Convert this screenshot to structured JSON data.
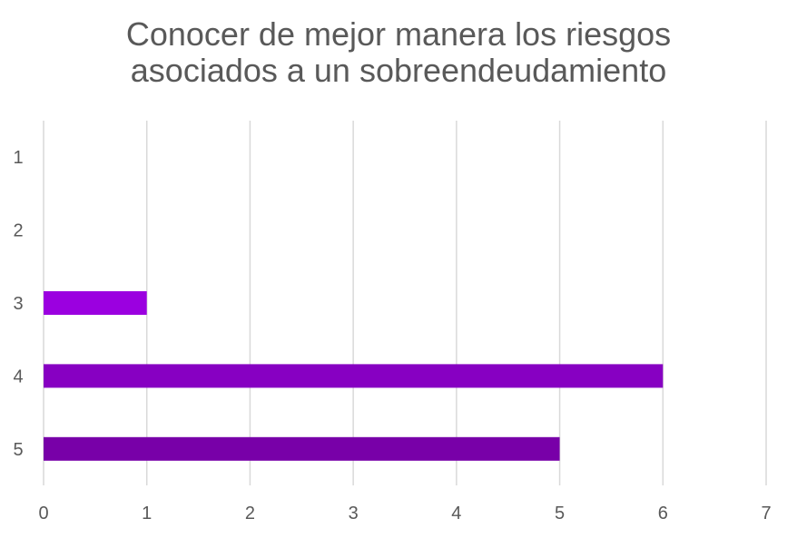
{
  "chart_data": {
    "type": "bar",
    "orientation": "horizontal",
    "title_lines": [
      "Conocer de mejor manera los riesgos",
      "asociados a un sobreendeudamiento"
    ],
    "categories": [
      "1",
      "2",
      "3",
      "4",
      "5"
    ],
    "values": [
      0,
      0,
      1,
      6,
      5
    ],
    "bar_colors": [
      "#9b00e0",
      "#9b00e0",
      "#9b00e0",
      "#8700c2",
      "#7800a8"
    ],
    "xlim": [
      0,
      7
    ],
    "x_ticks": [
      "0",
      "1",
      "2",
      "3",
      "4",
      "5",
      "6",
      "7"
    ],
    "grid": "vertical",
    "gridline_color": "#d9d9d9",
    "text_color": "#595959",
    "legend": "none"
  }
}
